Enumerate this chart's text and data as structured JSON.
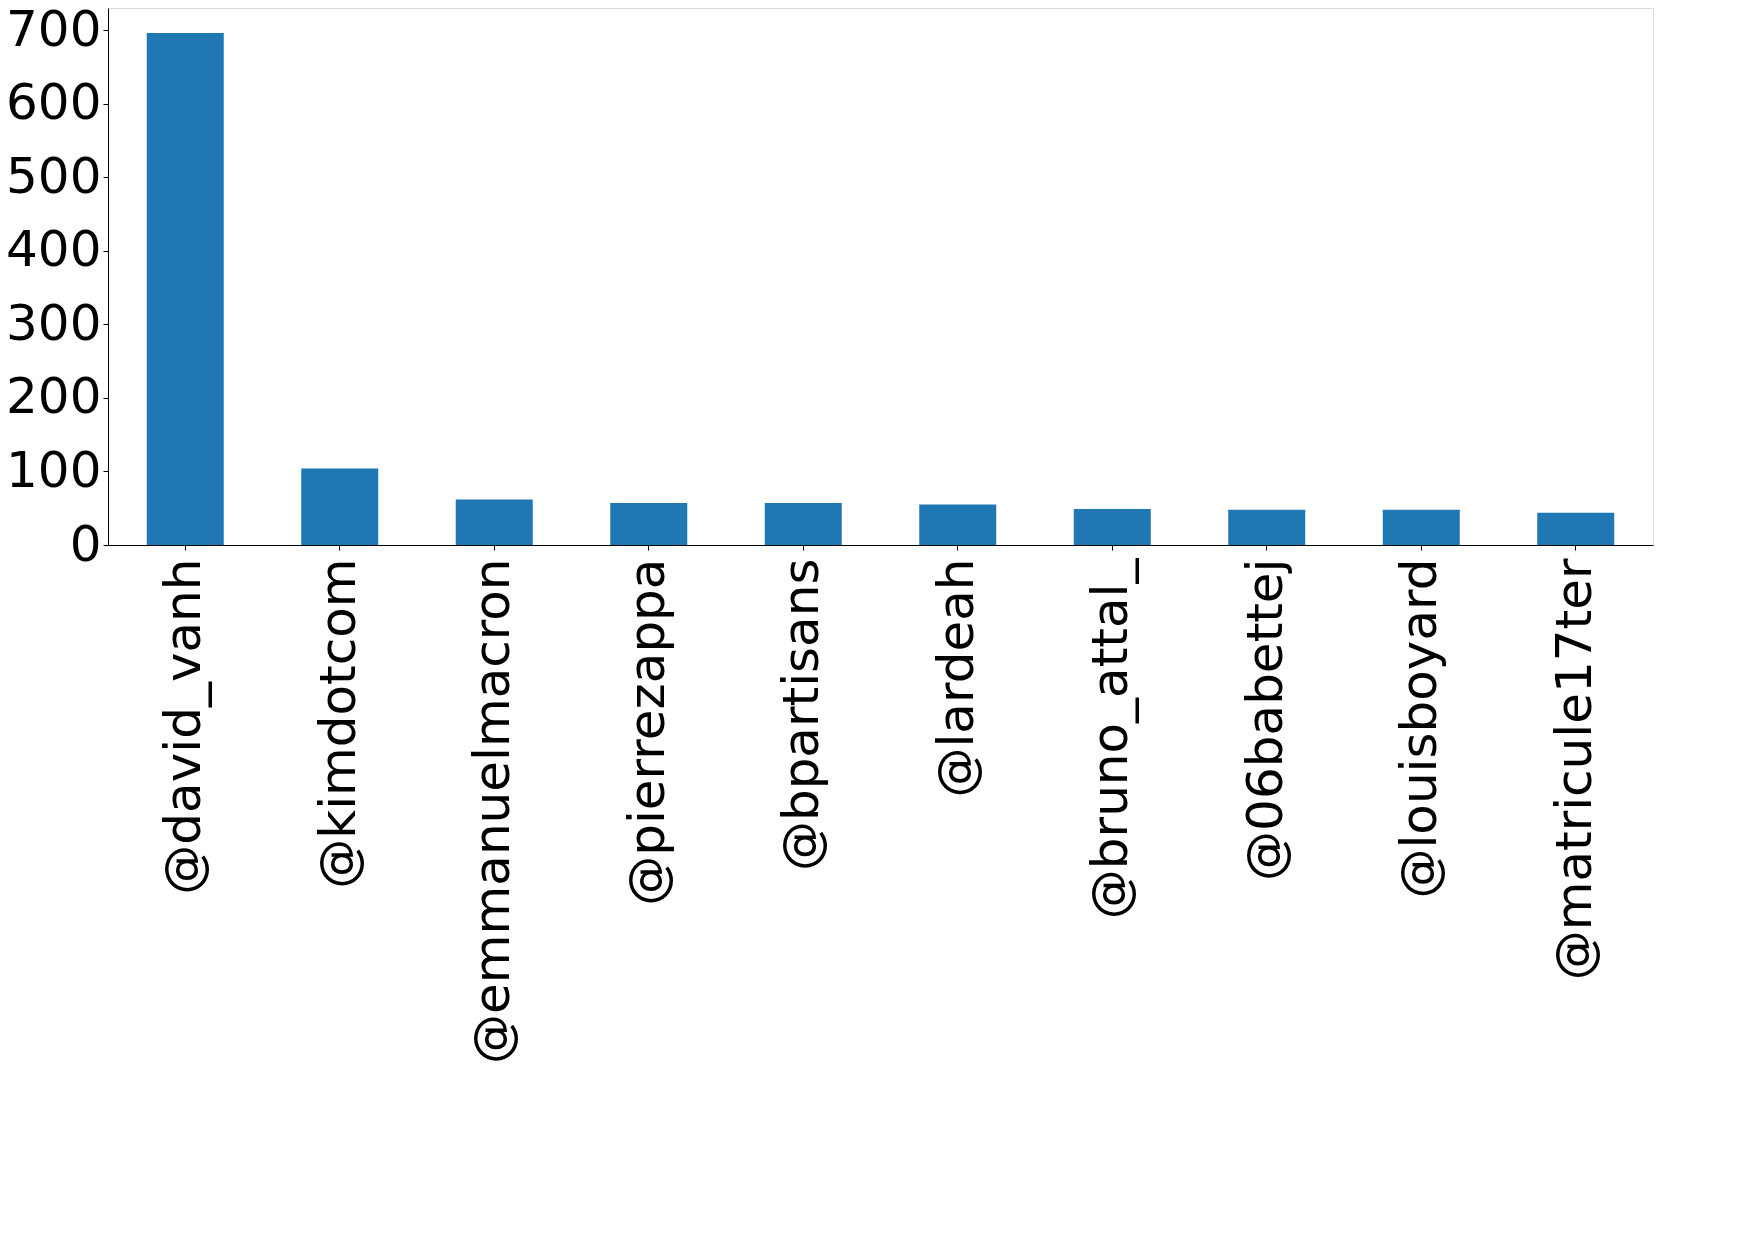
{
  "chart_data": {
    "type": "bar",
    "categories": [
      "@david_vanh",
      "@kimdotcom",
      "@emmanuelmacron",
      "@pierrezappa",
      "@bpartisans",
      "@lardeah",
      "@bruno_attal_",
      "@06babettej",
      "@louisboyard",
      "@matricule17ter"
    ],
    "values": [
      696,
      104,
      62,
      57,
      57,
      55,
      49,
      48,
      48,
      44
    ],
    "color": "#1f77b4",
    "ylim": [
      0,
      730
    ],
    "yticks": [
      0,
      100,
      200,
      300,
      400,
      500,
      600,
      700
    ],
    "grid": false
  }
}
